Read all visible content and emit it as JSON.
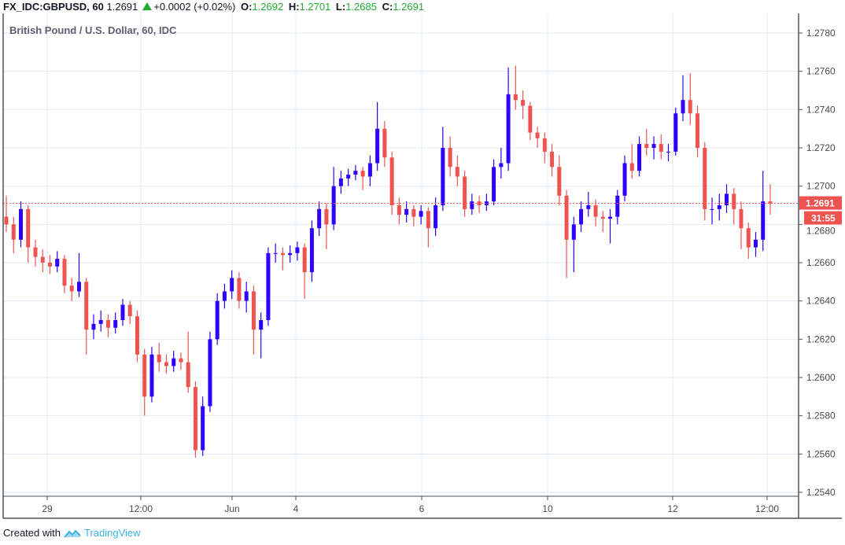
{
  "header": {
    "symbol": "FX_IDC:GBPUSD, 60",
    "last": "1.2691",
    "change": "+0.0002 (+0.02%)",
    "o_label": "O:",
    "o": "1.2692",
    "h_label": "H:",
    "h": "1.2701",
    "l_label": "L:",
    "l": "1.2685",
    "c_label": "C:",
    "c": "1.2691",
    "direction_icon": "triangle-up-icon"
  },
  "footer": {
    "created_with": "Created with",
    "brand": "TradingView",
    "logo_icon": "tradingview-cloud-icon"
  },
  "chart_data": {
    "type": "candlestick",
    "title": "British Pound / U.S. Dollar, 60, IDC",
    "interval": "60",
    "ylim": [
      1.2535,
      1.279
    ],
    "y_ticks": [
      "1.2780",
      "1.2760",
      "1.2740",
      "1.2720",
      "1.2700",
      "1.2680",
      "1.2660",
      "1.2640",
      "1.2620",
      "1.2600",
      "1.2580",
      "1.2560",
      "1.2540"
    ],
    "x_ticks": [
      "29",
      "12:00",
      "Jun",
      "4",
      "6",
      "10",
      "12",
      "12:00"
    ],
    "grid": true,
    "colors": {
      "up": "#2d00ff",
      "down": "#ef5350",
      "grid": "#e1ecf2",
      "price_line": "#ef5350"
    },
    "last_price_label": "1.2691",
    "last_price": 1.2691,
    "countdown": "31:55",
    "candles_ohlc": [
      [
        1.2684,
        1.2695,
        1.2676,
        1.268
      ],
      [
        1.268,
        1.2684,
        1.2665,
        1.2672
      ],
      [
        1.2672,
        1.2692,
        1.2668,
        1.2688
      ],
      [
        1.2688,
        1.269,
        1.266,
        1.2668
      ],
      [
        1.2668,
        1.2672,
        1.2658,
        1.2663
      ],
      [
        1.2663,
        1.2667,
        1.2655,
        1.266
      ],
      [
        1.266,
        1.2664,
        1.2654,
        1.2658
      ],
      [
        1.2658,
        1.2666,
        1.2655,
        1.2662
      ],
      [
        1.2662,
        1.2664,
        1.2644,
        1.2648
      ],
      [
        1.2648,
        1.2652,
        1.264,
        1.2645
      ],
      [
        1.2645,
        1.2665,
        1.2642,
        1.265
      ],
      [
        1.265,
        1.2652,
        1.2612,
        1.2625
      ],
      [
        1.2625,
        1.2633,
        1.262,
        1.2628
      ],
      [
        1.2628,
        1.2635,
        1.2624,
        1.263
      ],
      [
        1.263,
        1.2633,
        1.2621,
        1.2626
      ],
      [
        1.2626,
        1.2634,
        1.2623,
        1.263
      ],
      [
        1.263,
        1.2641,
        1.2627,
        1.2638
      ],
      [
        1.2638,
        1.264,
        1.2628,
        1.2632
      ],
      [
        1.2632,
        1.2635,
        1.2608,
        1.2612
      ],
      [
        1.2612,
        1.2615,
        1.258,
        1.259
      ],
      [
        1.259,
        1.2616,
        1.2587,
        1.2612
      ],
      [
        1.2612,
        1.2618,
        1.2603,
        1.2608
      ],
      [
        1.2608,
        1.2612,
        1.2602,
        1.2606
      ],
      [
        1.2606,
        1.2614,
        1.2603,
        1.261
      ],
      [
        1.261,
        1.2613,
        1.2604,
        1.2608
      ],
      [
        1.2608,
        1.2624,
        1.2592,
        1.2595
      ],
      [
        1.2595,
        1.2598,
        1.2558,
        1.2562
      ],
      [
        1.2562,
        1.259,
        1.2559,
        1.2585
      ],
      [
        1.2585,
        1.2624,
        1.2582,
        1.262
      ],
      [
        1.262,
        1.2644,
        1.2617,
        1.264
      ],
      [
        1.264,
        1.2649,
        1.2636,
        1.2645
      ],
      [
        1.2645,
        1.2656,
        1.2641,
        1.2652
      ],
      [
        1.2652,
        1.2655,
        1.2636,
        1.264
      ],
      [
        1.264,
        1.265,
        1.2634,
        1.2645
      ],
      [
        1.2645,
        1.2648,
        1.2612,
        1.2625
      ],
      [
        1.2625,
        1.2634,
        1.261,
        1.263
      ],
      [
        1.263,
        1.2668,
        1.2627,
        1.2665
      ],
      [
        1.2665,
        1.267,
        1.266,
        1.2665
      ],
      [
        1.2665,
        1.2668,
        1.2656,
        1.2664
      ],
      [
        1.2664,
        1.2669,
        1.266,
        1.2665
      ],
      [
        1.2665,
        1.2671,
        1.2661,
        1.2668
      ],
      [
        1.2668,
        1.267,
        1.2641,
        1.2655
      ],
      [
        1.2655,
        1.2682,
        1.265,
        1.2678
      ],
      [
        1.2678,
        1.2692,
        1.2674,
        1.2688
      ],
      [
        1.2688,
        1.2691,
        1.2667,
        1.268
      ],
      [
        1.268,
        1.271,
        1.2677,
        1.27
      ],
      [
        1.27,
        1.2708,
        1.2696,
        1.2704
      ],
      [
        1.2704,
        1.2709,
        1.27,
        1.2706
      ],
      [
        1.2706,
        1.2711,
        1.2703,
        1.2708
      ],
      [
        1.2708,
        1.271,
        1.2698,
        1.2705
      ],
      [
        1.2705,
        1.2716,
        1.27,
        1.2712
      ],
      [
        1.2712,
        1.2744,
        1.2708,
        1.273
      ],
      [
        1.273,
        1.2734,
        1.271,
        1.2715
      ],
      [
        1.2715,
        1.2718,
        1.2685,
        1.269
      ],
      [
        1.269,
        1.2694,
        1.268,
        1.2685
      ],
      [
        1.2685,
        1.2692,
        1.2681,
        1.2688
      ],
      [
        1.2688,
        1.269,
        1.2679,
        1.2684
      ],
      [
        1.2684,
        1.269,
        1.268,
        1.2687
      ],
      [
        1.2687,
        1.2689,
        1.2668,
        1.2678
      ],
      [
        1.2678,
        1.2694,
        1.2674,
        1.269
      ],
      [
        1.269,
        1.2731,
        1.2687,
        1.272
      ],
      [
        1.272,
        1.2726,
        1.2705,
        1.271
      ],
      [
        1.271,
        1.2716,
        1.27,
        1.2705
      ],
      [
        1.2705,
        1.2708,
        1.2684,
        1.2688
      ],
      [
        1.2688,
        1.2696,
        1.2685,
        1.2692
      ],
      [
        1.2692,
        1.2695,
        1.2686,
        1.269
      ],
      [
        1.269,
        1.2696,
        1.2687,
        1.2692
      ],
      [
        1.2692,
        1.2714,
        1.269,
        1.271
      ],
      [
        1.271,
        1.272,
        1.2704,
        1.2712
      ],
      [
        1.2712,
        1.2762,
        1.2708,
        1.2748
      ],
      [
        1.2748,
        1.2763,
        1.274,
        1.2745
      ],
      [
        1.2745,
        1.275,
        1.2735,
        1.2742
      ],
      [
        1.2742,
        1.2744,
        1.2724,
        1.2728
      ],
      [
        1.2728,
        1.2731,
        1.272,
        1.2725
      ],
      [
        1.2725,
        1.2728,
        1.2712,
        1.2718
      ],
      [
        1.2718,
        1.2722,
        1.2705,
        1.271
      ],
      [
        1.271,
        1.2716,
        1.269,
        1.2695
      ],
      [
        1.2695,
        1.2698,
        1.2652,
        1.2672
      ],
      [
        1.2672,
        1.2684,
        1.2655,
        1.268
      ],
      [
        1.268,
        1.2692,
        1.2676,
        1.2688
      ],
      [
        1.2688,
        1.2697,
        1.2684,
        1.269
      ],
      [
        1.269,
        1.2693,
        1.2679,
        1.2684
      ],
      [
        1.2684,
        1.2687,
        1.2676,
        1.2683
      ],
      [
        1.2683,
        1.2688,
        1.267,
        1.2684
      ],
      [
        1.2684,
        1.2698,
        1.268,
        1.2695
      ],
      [
        1.2695,
        1.2716,
        1.2692,
        1.2712
      ],
      [
        1.2712,
        1.2722,
        1.2704,
        1.2708
      ],
      [
        1.2708,
        1.2726,
        1.2705,
        1.2722
      ],
      [
        1.2722,
        1.273,
        1.2716,
        1.272
      ],
      [
        1.272,
        1.2726,
        1.2714,
        1.2722
      ],
      [
        1.2722,
        1.2727,
        1.2714,
        1.2718
      ],
      [
        1.2718,
        1.2722,
        1.2713,
        1.2718
      ],
      [
        1.2718,
        1.2741,
        1.2716,
        1.2738
      ],
      [
        1.2738,
        1.2758,
        1.2734,
        1.2745
      ],
      [
        1.2745,
        1.2759,
        1.2732,
        1.2738
      ],
      [
        1.2738,
        1.2742,
        1.2715,
        1.272
      ],
      [
        1.272,
        1.2723,
        1.2682,
        1.2688
      ],
      [
        1.2688,
        1.2694,
        1.268,
        1.2688
      ],
      [
        1.2688,
        1.2696,
        1.2682,
        1.269
      ],
      [
        1.269,
        1.2701,
        1.2686,
        1.2696
      ],
      [
        1.2696,
        1.2699,
        1.268,
        1.2688
      ],
      [
        1.2688,
        1.2692,
        1.2667,
        1.2678
      ],
      [
        1.2678,
        1.2681,
        1.2662,
        1.2668
      ],
      [
        1.2668,
        1.2676,
        1.2663,
        1.2672
      ],
      [
        1.2672,
        1.2708,
        1.2666,
        1.2692
      ],
      [
        1.2692,
        1.2701,
        1.2685,
        1.2691
      ]
    ]
  }
}
